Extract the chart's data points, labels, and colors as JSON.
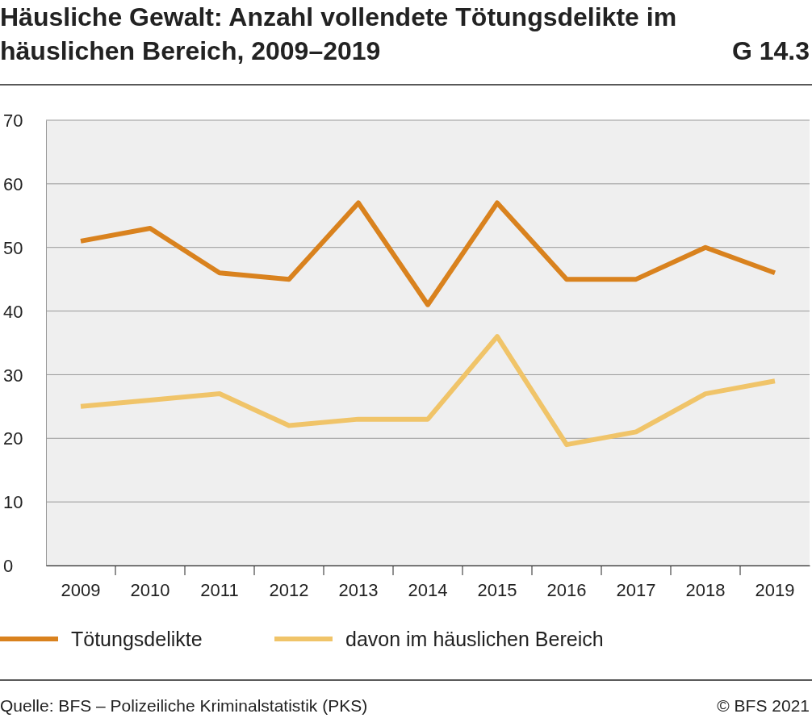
{
  "chart_data": {
    "type": "line",
    "title": "Häusliche Gewalt: Anzahl vollendete Tötungsdelikte im häuslichen Bereich, 2009–2019",
    "annotations": [
      "G 14.3",
      "Quelle: BFS – Polizeiliche Kriminalstatistik (PKS)",
      "© BFS 2021"
    ],
    "categories": [
      "2009",
      "2010",
      "2011",
      "2012",
      "2013",
      "2014",
      "2015",
      "2016",
      "2017",
      "2018",
      "2019"
    ],
    "series": [
      {
        "name": "Tötungsdelikte",
        "color": "#d9821e",
        "values": [
          51,
          53,
          46,
          45,
          57,
          41,
          57,
          45,
          45,
          50,
          46
        ]
      },
      {
        "name": "davon im häuslichen Bereich",
        "color": "#f0c469",
        "values": [
          25,
          26,
          27,
          22,
          23,
          23,
          36,
          19,
          21,
          27,
          29
        ]
      }
    ],
    "ylim": [
      0,
      70
    ],
    "yticks": [
      0,
      10,
      20,
      30,
      40,
      50,
      60,
      70
    ],
    "grid": "y",
    "legend": "bottom",
    "marker": "none",
    "line_style": "solid"
  }
}
